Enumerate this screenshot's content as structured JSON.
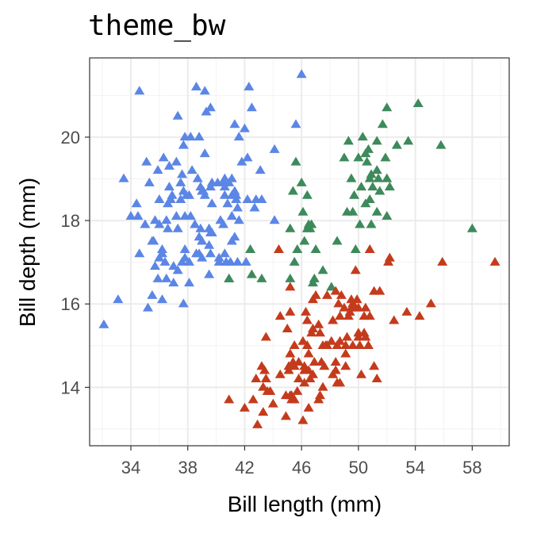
{
  "chart_data": {
    "type": "scatter",
    "title": "theme_bw",
    "xlabel": "Bill length (mm)",
    "ylabel": "Bill depth (mm)",
    "xlim": [
      31.1,
      60.6
    ],
    "ylim": [
      12.6,
      21.9
    ],
    "xticks": [
      34,
      38,
      42,
      46,
      50,
      54,
      58
    ],
    "yticks": [
      14,
      16,
      18,
      20
    ],
    "xtick_labels": [
      "34",
      "38",
      "42",
      "46",
      "50",
      "54",
      "58"
    ],
    "ytick_labels": [
      "14",
      "16",
      "18",
      "20"
    ],
    "grid": true,
    "legend": "none",
    "marker": "triangle",
    "series": [
      {
        "color": "#5b86e5",
        "points": [
          [
            32.1,
            15.5
          ],
          [
            33.1,
            16.1
          ],
          [
            33.5,
            19.0
          ],
          [
            34.0,
            18.1
          ],
          [
            34.4,
            18.4
          ],
          [
            34.5,
            18.1
          ],
          [
            34.6,
            21.1
          ],
          [
            34.6,
            17.2
          ],
          [
            35.0,
            17.9
          ],
          [
            35.1,
            19.4
          ],
          [
            35.2,
            15.9
          ],
          [
            35.3,
            18.9
          ],
          [
            35.5,
            16.2
          ],
          [
            35.5,
            17.5
          ],
          [
            35.6,
            17.5
          ],
          [
            35.7,
            16.9
          ],
          [
            35.7,
            18.0
          ],
          [
            35.9,
            16.6
          ],
          [
            35.9,
            19.2
          ],
          [
            36.0,
            17.1
          ],
          [
            36.0,
            17.9
          ],
          [
            36.0,
            18.5
          ],
          [
            36.2,
            16.1
          ],
          [
            36.2,
            17.2
          ],
          [
            36.2,
            17.3
          ],
          [
            36.3,
            19.5
          ],
          [
            36.4,
            17.0
          ],
          [
            36.5,
            16.6
          ],
          [
            36.5,
            18.0
          ],
          [
            36.6,
            17.8
          ],
          [
            36.6,
            18.4
          ],
          [
            36.7,
            18.8
          ],
          [
            36.7,
            19.3
          ],
          [
            36.8,
            18.5
          ],
          [
            36.9,
            18.6
          ],
          [
            37.0,
            16.5
          ],
          [
            37.0,
            16.9
          ],
          [
            37.2,
            18.1
          ],
          [
            37.2,
            19.4
          ],
          [
            37.3,
            16.8
          ],
          [
            37.3,
            17.8
          ],
          [
            37.3,
            20.5
          ],
          [
            37.5,
            18.5
          ],
          [
            37.5,
            18.9
          ],
          [
            37.6,
            17.0
          ],
          [
            37.6,
            19.1
          ],
          [
            37.7,
            16.0
          ],
          [
            37.7,
            18.7
          ],
          [
            37.7,
            19.8
          ],
          [
            37.8,
            17.1
          ],
          [
            37.8,
            17.3
          ],
          [
            37.8,
            18.1
          ],
          [
            37.8,
            20.0
          ],
          [
            37.9,
            18.6
          ],
          [
            38.1,
            16.5
          ],
          [
            38.1,
            17.0
          ],
          [
            38.1,
            18.6
          ],
          [
            38.2,
            18.1
          ],
          [
            38.2,
            20.0
          ],
          [
            38.3,
            19.2
          ],
          [
            38.5,
            17.9
          ],
          [
            38.6,
            17.2
          ],
          [
            38.6,
            21.2
          ],
          [
            38.7,
            19.0
          ],
          [
            38.8,
            17.2
          ],
          [
            38.8,
            17.6
          ],
          [
            38.8,
            20.0
          ],
          [
            38.9,
            17.8
          ],
          [
            38.9,
            18.8
          ],
          [
            39.0,
            17.1
          ],
          [
            39.0,
            17.5
          ],
          [
            39.0,
            18.7
          ],
          [
            39.1,
            18.7
          ],
          [
            39.2,
            18.6
          ],
          [
            39.2,
            19.6
          ],
          [
            39.2,
            21.1
          ],
          [
            39.3,
            20.6
          ],
          [
            39.5,
            16.7
          ],
          [
            39.5,
            17.4
          ],
          [
            39.5,
            17.8
          ],
          [
            39.6,
            17.2
          ],
          [
            39.6,
            17.7
          ],
          [
            39.6,
            18.8
          ],
          [
            39.6,
            20.7
          ],
          [
            39.7,
            17.7
          ],
          [
            39.7,
            18.4
          ],
          [
            39.7,
            18.9
          ],
          [
            40.1,
            18.9
          ],
          [
            40.2,
            17.0
          ],
          [
            40.2,
            17.1
          ],
          [
            40.3,
            18.0
          ],
          [
            40.5,
            17.9
          ],
          [
            40.5,
            18.9
          ],
          [
            40.6,
            17.2
          ],
          [
            40.6,
            18.6
          ],
          [
            40.6,
            18.8
          ],
          [
            40.6,
            19.0
          ],
          [
            40.7,
            17.0
          ],
          [
            40.8,
            18.4
          ],
          [
            40.9,
            16.6
          ],
          [
            40.9,
            18.9
          ],
          [
            41.0,
            17.0
          ],
          [
            41.1,
            17.5
          ],
          [
            41.1,
            18.1
          ],
          [
            41.1,
            18.6
          ],
          [
            41.1,
            19.0
          ],
          [
            41.3,
            17.6
          ],
          [
            41.3,
            18.7
          ],
          [
            41.3,
            20.3
          ],
          [
            41.4,
            18.5
          ],
          [
            41.4,
            18.6
          ],
          [
            41.5,
            17.0
          ],
          [
            41.5,
            18.3
          ],
          [
            41.6,
            18.0
          ],
          [
            41.6,
            20.0
          ],
          [
            41.8,
            19.4
          ],
          [
            42.0,
            20.2
          ],
          [
            42.1,
            17.0
          ],
          [
            42.2,
            18.5
          ],
          [
            42.2,
            19.5
          ],
          [
            42.3,
            21.2
          ],
          [
            42.5,
            20.7
          ],
          [
            42.7,
            18.3
          ],
          [
            42.8,
            18.5
          ],
          [
            43.1,
            19.2
          ],
          [
            43.2,
            18.5
          ],
          [
            44.1,
            18.0
          ],
          [
            44.1,
            19.7
          ],
          [
            45.6,
            20.3
          ],
          [
            46.0,
            21.5
          ]
        ]
      },
      {
        "color": "#3d8a5b",
        "points": [
          [
            40.9,
            16.6
          ],
          [
            42.4,
            17.3
          ],
          [
            42.5,
            16.7
          ],
          [
            43.2,
            16.6
          ],
          [
            45.2,
            17.8
          ],
          [
            45.2,
            16.6
          ],
          [
            45.4,
            18.7
          ],
          [
            45.5,
            17.0
          ],
          [
            45.6,
            19.4
          ],
          [
            45.7,
            17.3
          ],
          [
            46.0,
            18.9
          ],
          [
            46.1,
            18.2
          ],
          [
            46.2,
            17.5
          ],
          [
            46.4,
            18.6
          ],
          [
            46.4,
            17.8
          ],
          [
            46.5,
            17.9
          ],
          [
            46.6,
            17.8
          ],
          [
            46.7,
            17.9
          ],
          [
            46.8,
            16.5
          ],
          [
            46.9,
            16.6
          ],
          [
            47.0,
            17.3
          ],
          [
            47.5,
            16.8
          ],
          [
            48.1,
            16.4
          ],
          [
            48.5,
            17.5
          ],
          [
            49.0,
            19.5
          ],
          [
            49.2,
            18.2
          ],
          [
            49.3,
            19.9
          ],
          [
            49.5,
            19.0
          ],
          [
            49.6,
            18.2
          ],
          [
            49.7,
            18.6
          ],
          [
            49.8,
            17.3
          ],
          [
            50.0,
            19.5
          ],
          [
            50.1,
            17.9
          ],
          [
            50.2,
            18.8
          ],
          [
            50.3,
            20.0
          ],
          [
            50.5,
            18.4
          ],
          [
            50.5,
            19.6
          ],
          [
            50.6,
            19.4
          ],
          [
            50.7,
            19.7
          ],
          [
            50.8,
            18.5
          ],
          [
            50.8,
            19.0
          ],
          [
            50.9,
            17.9
          ],
          [
            50.9,
            19.1
          ],
          [
            51.0,
            18.8
          ],
          [
            51.3,
            18.2
          ],
          [
            51.3,
            19.2
          ],
          [
            51.3,
            19.9
          ],
          [
            51.4,
            19.0
          ],
          [
            51.5,
            18.7
          ],
          [
            51.7,
            20.3
          ],
          [
            51.9,
            19.5
          ],
          [
            52.0,
            18.1
          ],
          [
            52.0,
            19.0
          ],
          [
            52.0,
            20.7
          ],
          [
            52.2,
            18.8
          ],
          [
            52.7,
            19.8
          ],
          [
            53.5,
            19.9
          ],
          [
            54.2,
            20.8
          ],
          [
            55.8,
            19.8
          ],
          [
            58.0,
            17.8
          ]
        ]
      },
      {
        "color": "#c43b1c",
        "points": [
          [
            40.9,
            13.7
          ],
          [
            42.0,
            13.5
          ],
          [
            42.6,
            13.7
          ],
          [
            42.8,
            14.2
          ],
          [
            42.9,
            13.1
          ],
          [
            43.2,
            14.5
          ],
          [
            43.3,
            13.4
          ],
          [
            43.3,
            14.0
          ],
          [
            43.4,
            14.4
          ],
          [
            43.5,
            14.2
          ],
          [
            43.5,
            15.2
          ],
          [
            43.6,
            13.9
          ],
          [
            43.8,
            13.9
          ],
          [
            44.0,
            13.6
          ],
          [
            44.4,
            17.3
          ],
          [
            44.5,
            14.3
          ],
          [
            44.5,
            15.7
          ],
          [
            44.9,
            13.3
          ],
          [
            44.9,
            13.8
          ],
          [
            45.0,
            15.4
          ],
          [
            45.1,
            14.4
          ],
          [
            45.1,
            14.5
          ],
          [
            45.2,
            13.8
          ],
          [
            45.2,
            14.8
          ],
          [
            45.2,
            15.8
          ],
          [
            45.2,
            16.4
          ],
          [
            45.3,
            13.7
          ],
          [
            45.3,
            13.8
          ],
          [
            45.4,
            14.6
          ],
          [
            45.5,
            13.7
          ],
          [
            45.5,
            14.5
          ],
          [
            45.5,
            15.0
          ],
          [
            45.7,
            13.9
          ],
          [
            45.8,
            14.2
          ],
          [
            45.8,
            14.6
          ],
          [
            46.1,
            13.2
          ],
          [
            46.1,
            15.1
          ],
          [
            46.2,
            14.1
          ],
          [
            46.2,
            14.4
          ],
          [
            46.2,
            14.5
          ],
          [
            46.3,
            15.8
          ],
          [
            46.4,
            15.0
          ],
          [
            46.4,
            15.6
          ],
          [
            46.5,
            13.5
          ],
          [
            46.5,
            14.4
          ],
          [
            46.5,
            14.8
          ],
          [
            46.6,
            14.2
          ],
          [
            46.7,
            15.3
          ],
          [
            46.8,
            14.3
          ],
          [
            46.8,
            15.4
          ],
          [
            46.8,
            16.1
          ],
          [
            46.9,
            14.6
          ],
          [
            47.0,
            16.2
          ],
          [
            47.2,
            13.7
          ],
          [
            47.2,
            15.5
          ],
          [
            47.3,
            13.8
          ],
          [
            47.3,
            15.3
          ],
          [
            47.4,
            14.6
          ],
          [
            47.5,
            14.0
          ],
          [
            47.5,
            15.0
          ],
          [
            47.6,
            14.5
          ],
          [
            47.7,
            15.0
          ],
          [
            47.8,
            15.0
          ],
          [
            47.8,
            16.2
          ],
          [
            48.1,
            15.1
          ],
          [
            48.2,
            14.3
          ],
          [
            48.2,
            15.6
          ],
          [
            48.4,
            14.4
          ],
          [
            48.4,
            14.6
          ],
          [
            48.4,
            16.3
          ],
          [
            48.5,
            14.1
          ],
          [
            48.5,
            15.0
          ],
          [
            48.6,
            16.0
          ],
          [
            48.7,
            14.1
          ],
          [
            48.7,
            15.1
          ],
          [
            48.7,
            15.7
          ],
          [
            48.8,
            16.2
          ],
          [
            49.0,
            15.9
          ],
          [
            49.1,
            14.5
          ],
          [
            49.1,
            14.8
          ],
          [
            49.1,
            15.0
          ],
          [
            49.2,
            15.2
          ],
          [
            49.3,
            15.7
          ],
          [
            49.4,
            15.8
          ],
          [
            49.5,
            15.9
          ],
          [
            49.5,
            16.1
          ],
          [
            49.6,
            15.0
          ],
          [
            49.6,
            16.0
          ],
          [
            49.8,
            15.9
          ],
          [
            49.8,
            16.8
          ],
          [
            49.9,
            16.1
          ],
          [
            50.0,
            15.2
          ],
          [
            50.0,
            15.3
          ],
          [
            50.0,
            15.9
          ],
          [
            50.1,
            15.0
          ],
          [
            50.2,
            14.3
          ],
          [
            50.4,
            15.3
          ],
          [
            50.4,
            15.7
          ],
          [
            50.5,
            15.2
          ],
          [
            50.5,
            15.9
          ],
          [
            50.7,
            15.0
          ],
          [
            50.8,
            15.7
          ],
          [
            50.8,
            17.3
          ],
          [
            51.1,
            14.5
          ],
          [
            51.1,
            16.3
          ],
          [
            51.3,
            14.2
          ],
          [
            51.5,
            16.3
          ],
          [
            52.1,
            17.0
          ],
          [
            52.2,
            17.1
          ],
          [
            52.5,
            15.6
          ],
          [
            53.4,
            15.8
          ],
          [
            54.3,
            15.7
          ],
          [
            55.1,
            16.0
          ],
          [
            55.9,
            17.0
          ],
          [
            59.6,
            17.0
          ]
        ]
      }
    ]
  }
}
